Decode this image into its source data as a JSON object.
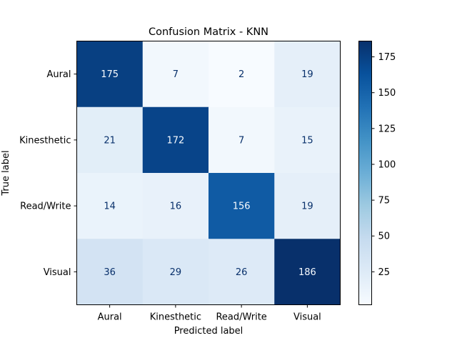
{
  "chart_data": {
    "type": "heatmap",
    "title": "Confusion Matrix - KNN",
    "xlabel": "Predicted label",
    "ylabel": "True label",
    "x_categories": [
      "Aural",
      "Kinesthetic",
      "Read/Write",
      "Visual"
    ],
    "y_categories": [
      "Aural",
      "Kinesthetic",
      "Read/Write",
      "Visual"
    ],
    "values": [
      [
        175,
        7,
        2,
        19
      ],
      [
        21,
        172,
        7,
        15
      ],
      [
        14,
        16,
        156,
        19
      ],
      [
        36,
        29,
        26,
        186
      ]
    ],
    "colormap": "Blues",
    "colorbar": {
      "min": 2,
      "max": 186,
      "ticks": [
        25,
        50,
        75,
        100,
        125,
        150,
        175
      ]
    }
  }
}
